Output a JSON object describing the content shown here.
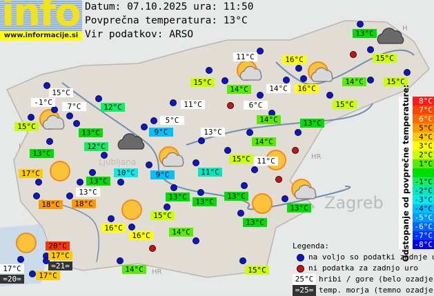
{
  "logo": {
    "text": "info",
    "url": "www.informacije.si"
  },
  "header": {
    "date_line": "Datum: 07.10.2025 ura: 11:50",
    "avg_line": "Povprečna temperatura: 13°C",
    "source_line": "Vir podatkov: ARSO"
  },
  "map_labels": {
    "ljubljana": "Ljubljana",
    "zagreb": "Zagreb",
    "hr1": "HR",
    "hr2": "HR",
    "hr3": "HR",
    "h": "H",
    "i": "I"
  },
  "colors": {
    "blue_dot": "#0a14d8",
    "red_dot": "#d40f0f",
    "mountain_bg": "#ffffff",
    "sea_bg": "#333333"
  },
  "stations": [
    {
      "t": "13°C",
      "bg": "#00dd00"
    },
    {
      "t": "11°C",
      "bg": "#ffffff"
    },
    {
      "t": "16°C",
      "bg": "#ffff00"
    },
    {
      "t": "15°C",
      "bg": "#ccff00"
    },
    {
      "t": "15°C",
      "bg": "#ccff00"
    },
    {
      "t": "14°C",
      "bg": "#55ee00"
    },
    {
      "t": "14°C",
      "bg": "#ffffff"
    },
    {
      "t": "16°C",
      "bg": "#ffff00"
    },
    {
      "t": "14°C",
      "bg": "#55ee00"
    },
    {
      "t": "15°C",
      "bg": "#ccff00"
    },
    {
      "t": "6°C",
      "bg": "#ffffff"
    },
    {
      "t": "15°C",
      "bg": "#ccff00"
    },
    {
      "t": "14°C",
      "bg": "#55ee00"
    },
    {
      "t": "13°C",
      "bg": "#00dd00"
    },
    {
      "t": "13°C",
      "bg": "#ffffff"
    },
    {
      "t": "14°C",
      "bg": "#55ee00"
    },
    {
      "t": "15°C",
      "bg": "#ccff00"
    },
    {
      "t": "11°C",
      "bg": "#ffffff"
    },
    {
      "t": "11°C",
      "bg": "#00e8c0"
    },
    {
      "t": "13°C",
      "bg": "#00dd00"
    },
    {
      "t": "13°C",
      "bg": "#00dd00"
    },
    {
      "t": "13°C",
      "bg": "#00dd00"
    },
    {
      "t": "13°C",
      "bg": "#00dd00"
    },
    {
      "t": "13°C",
      "bg": "#00dd00"
    },
    {
      "t": "14°C",
      "bg": "#55ee00"
    },
    {
      "t": "15°C",
      "bg": "#ccff00"
    },
    {
      "t": "15°C",
      "bg": "#ffffff"
    },
    {
      "t": "-1°C",
      "bg": "#ffffff"
    },
    {
      "t": "7°C",
      "bg": "#ffffff"
    },
    {
      "t": "12°C",
      "bg": "#11ee66"
    },
    {
      "t": "11°C",
      "bg": "#ffffff"
    },
    {
      "t": "15°C",
      "bg": "#ccff00"
    },
    {
      "t": "13°C",
      "bg": "#00dd00"
    },
    {
      "t": "5°C",
      "bg": "#ffffff"
    },
    {
      "t": "9°C",
      "bg": "#00c0ff"
    },
    {
      "t": "12°C",
      "bg": "#11ee66"
    },
    {
      "t": "13°C",
      "bg": "#00dd00"
    },
    {
      "t": "17°C",
      "bg": "#ffcc00"
    },
    {
      "t": "10°C",
      "bg": "#00eeee"
    },
    {
      "t": "9°C",
      "bg": "#00c0ff"
    },
    {
      "t": "13°C",
      "bg": "#00dd00"
    },
    {
      "t": "13°C",
      "bg": "#ffffff"
    },
    {
      "t": "18°C",
      "bg": "#ff9900"
    },
    {
      "t": "18°C",
      "bg": "#ff9900"
    },
    {
      "t": "15°C",
      "bg": "#ccff00"
    },
    {
      "t": "16°C",
      "bg": "#ffff00"
    },
    {
      "t": "16°C",
      "bg": "#ffff00"
    },
    {
      "t": "20°C",
      "bg": "#ff3300"
    },
    {
      "t": "17°C",
      "bg": "#ffcc00"
    },
    {
      "t": "=21=",
      "bg": "#333333"
    },
    {
      "t": "17°C",
      "bg": "#ffffff"
    },
    {
      "t": "=20=",
      "bg": "#333333"
    },
    {
      "t": "17°C",
      "bg": "#ffcc00"
    },
    {
      "t": "14°C",
      "bg": "#55ee00"
    }
  ],
  "dots": [
    "ok",
    "ok",
    "missing",
    "ok",
    "ok",
    "ok",
    "ok",
    "ok",
    "ok",
    "ok",
    "ok",
    "ok",
    "missing",
    "ok",
    "ok",
    "ok",
    "ok",
    "ok",
    "missing",
    "ok",
    "ok",
    "missing",
    "ok",
    "ok",
    "ok",
    "ok",
    "ok",
    "ok",
    "ok",
    "ok",
    "ok",
    "ok",
    "ok",
    "ok",
    "ok",
    "ok",
    "ok",
    "ok",
    "ok",
    "ok",
    "ok",
    "ok",
    "ok",
    "ok",
    "ok",
    "ok",
    "ok",
    "ok",
    "ok",
    "ok",
    "ok",
    "missing",
    "ok",
    "ok",
    "ok",
    "ok",
    "ok"
  ],
  "weather_icons": [
    "sun-cloud",
    "sun",
    "dark-cloud",
    "sun-cloud",
    "sun",
    "sun",
    "sun-cloud",
    "sun-cloud",
    "dark-cloud",
    "sun",
    "sun",
    "sun-cloud"
  ],
  "scale": {
    "title": "Odstopanje od povprečne temperature:",
    "rows": [
      {
        "label": "8°C",
        "color": "#ff1a1a",
        "fg": "#ffffff"
      },
      {
        "label": "7°C",
        "color": "#ff4400",
        "fg": "#ffffff"
      },
      {
        "label": "6°C",
        "color": "#ff6a00",
        "fg": "#ffffff"
      },
      {
        "label": "5°C",
        "color": "#ff9900",
        "fg": "#000000"
      },
      {
        "label": "4°C",
        "color": "#ffcc00",
        "fg": "#000000"
      },
      {
        "label": "3°C",
        "color": "#ffff00",
        "fg": "#000000"
      },
      {
        "label": "2°C",
        "color": "#ccff00",
        "fg": "#000000"
      },
      {
        "label": "1°C",
        "color": "#55ee00",
        "fg": "#000000"
      },
      {
        "label": "",
        "color": "#00dd00",
        "fg": "#000000"
      },
      {
        "label": "-1°C",
        "color": "#11ee66",
        "fg": "#000000"
      },
      {
        "label": "-2°C",
        "color": "#00e8c0",
        "fg": "#000000"
      },
      {
        "label": "-3°C",
        "color": "#00eeee",
        "fg": "#000000"
      },
      {
        "label": "-4°C",
        "color": "#00c0ff",
        "fg": "#000000"
      },
      {
        "label": "-5°C",
        "color": "#0099ff",
        "fg": "#ffffff"
      },
      {
        "label": "-6°C",
        "color": "#0066ff",
        "fg": "#ffffff"
      },
      {
        "label": "-7°C",
        "color": "#0033ff",
        "fg": "#ffffff"
      },
      {
        "label": "-8°C",
        "color": "#0000ee",
        "fg": "#ffffff"
      }
    ]
  },
  "legend": {
    "title": "Legenda:",
    "available": "na voljo so podatki zadnje ure",
    "missing": "ni podatka za zadnjo uro",
    "mountain_sample": "25°C",
    "mountain_text": "hribi / gore (belo ozadje)",
    "sea_sample": "=25=",
    "sea_text": "temp. morja (temno ozadje)"
  }
}
